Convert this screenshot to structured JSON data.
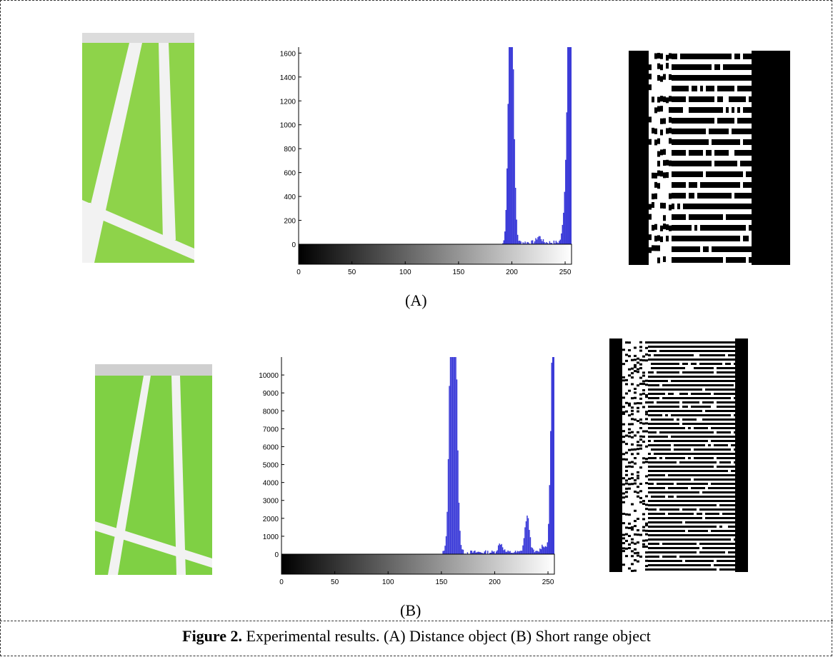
{
  "figure": {
    "caption_label": "Figure 2.",
    "caption_text": " Experimental results. (A) Distance object (B) Short range object",
    "label_a": "(A)",
    "label_b": "(B)"
  },
  "colors": {
    "field_green": "#8ed34a",
    "field_green_b": "#7fd044",
    "line_white": "#f2f2f2",
    "histogram_bar": "#3a3ad8"
  },
  "chart_data": [
    {
      "type": "bar",
      "panel": "A",
      "title": "",
      "xlabel": "",
      "ylabel": "",
      "xlim": [
        0,
        256
      ],
      "ylim": [
        0,
        1650
      ],
      "x_ticks": [
        0,
        50,
        100,
        150,
        200,
        250
      ],
      "y_ticks": [
        0,
        200,
        400,
        600,
        800,
        1000,
        1200,
        1400,
        1600
      ],
      "grid": false,
      "colorbar": "grayscale 0-255",
      "peaks": [
        {
          "x": 198,
          "y": 1100
        },
        {
          "x": 199,
          "y": 850
        },
        {
          "x": 200,
          "y": 500
        },
        {
          "x": 225,
          "y": 50
        },
        {
          "x": 250,
          "y": 330
        },
        {
          "x": 254,
          "y": 1250
        },
        {
          "x": 255,
          "y": 1620
        }
      ]
    },
    {
      "type": "bar",
      "panel": "B",
      "title": "",
      "xlabel": "",
      "ylabel": "",
      "xlim": [
        0,
        256
      ],
      "ylim": [
        0,
        11000
      ],
      "x_ticks": [
        0,
        50,
        100,
        150,
        200,
        250
      ],
      "y_ticks": [
        0,
        1000,
        2000,
        3000,
        4000,
        5000,
        6000,
        7000,
        8000,
        9000,
        10000
      ],
      "grid": false,
      "colorbar": "grayscale 0-255",
      "peaks": [
        {
          "x": 159,
          "y": 10800
        },
        {
          "x": 161,
          "y": 10800
        },
        {
          "x": 163,
          "y": 5000
        },
        {
          "x": 205,
          "y": 500
        },
        {
          "x": 230,
          "y": 2000
        },
        {
          "x": 245,
          "y": 400
        },
        {
          "x": 254,
          "y": 4000
        },
        {
          "x": 255,
          "y": 10700
        }
      ]
    }
  ]
}
